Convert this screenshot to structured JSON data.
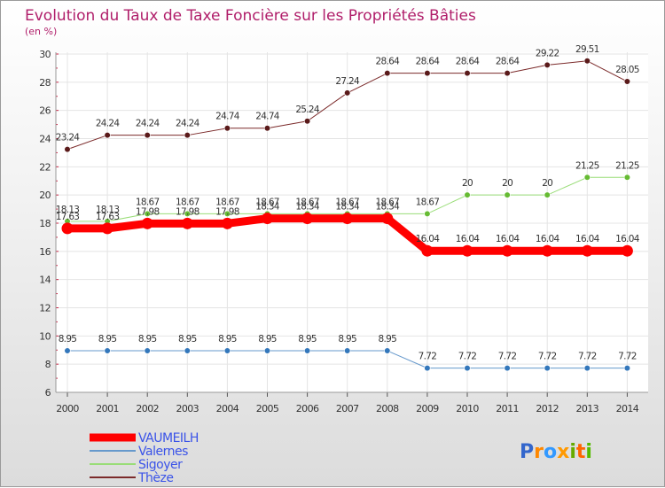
{
  "chart_data": {
    "type": "line",
    "title": "Evolution du Taux de Taxe Foncière sur les Propriétés Bâties",
    "subtitle": "(en %)",
    "x": [
      "2000",
      "2001",
      "2002",
      "2003",
      "2004",
      "2005",
      "2006",
      "2007",
      "2008",
      "2009",
      "2010",
      "2011",
      "2012",
      "2013",
      "2014"
    ],
    "yticks": [
      "6",
      "8",
      "10",
      "12",
      "14",
      "16",
      "18",
      "20",
      "22",
      "24",
      "26",
      "28",
      "30"
    ],
    "ylim": [
      6,
      30
    ],
    "legend_position": "bottom-left",
    "series": [
      {
        "name": "Thèze",
        "color": "#7b2a2a",
        "marker": "#5a1a1a",
        "width": 1,
        "values": [
          23.24,
          24.24,
          24.24,
          24.24,
          24.74,
          24.74,
          25.24,
          27.24,
          28.64,
          28.64,
          28.64,
          28.64,
          29.22,
          29.51,
          28.05
        ],
        "labels": [
          "23.24",
          "24.24",
          "24.24",
          "24.24",
          "24.74",
          "24.74",
          "25.24",
          "27.24",
          "28.64",
          "28.64",
          "28.64",
          "28.64",
          "29.22",
          "29.51",
          "28.05"
        ]
      },
      {
        "name": "Sigoyer",
        "color": "#99dd77",
        "marker": "#66bb33",
        "width": 1,
        "values": [
          18.13,
          18.13,
          18.67,
          18.67,
          18.67,
          18.67,
          18.67,
          18.67,
          18.67,
          18.67,
          20,
          20,
          20,
          21.25,
          21.25
        ],
        "labels": [
          "18.13",
          "18.13",
          "18.67",
          "18.67",
          "18.67",
          "18.67",
          "18.67",
          "18.67",
          "18.67",
          "18.67",
          "20",
          "20",
          "20",
          "21.25",
          "21.25"
        ]
      },
      {
        "name": "VAUMEILH",
        "color": "#ff0000",
        "marker": "#ff0000",
        "width": 9,
        "values": [
          17.63,
          17.63,
          17.98,
          17.98,
          17.98,
          18.34,
          18.34,
          18.34,
          18.34,
          16.04,
          16.04,
          16.04,
          16.04,
          16.04,
          16.04
        ],
        "labels": [
          "17.63",
          "17.63",
          "17.98",
          "17.98",
          "17.98",
          "18.34",
          "18.34",
          "18.34",
          "18.34",
          "16.04",
          "16.04",
          "16.04",
          "16.04",
          "16.04",
          "16.04"
        ]
      },
      {
        "name": "Valernes",
        "color": "#6699cc",
        "marker": "#3377bb",
        "width": 1,
        "values": [
          8.95,
          8.95,
          8.95,
          8.95,
          8.95,
          8.95,
          8.95,
          8.95,
          8.95,
          7.72,
          7.72,
          7.72,
          7.72,
          7.72,
          7.72
        ],
        "labels": [
          "8.95",
          "8.95",
          "8.95",
          "8.95",
          "8.95",
          "8.95",
          "8.95",
          "8.95",
          "8.95",
          "7.72",
          "7.72",
          "7.72",
          "7.72",
          "7.72",
          "7.72"
        ]
      }
    ],
    "legend": [
      "VAUMEILH",
      "Valernes",
      "Sigoyer",
      "Thèze"
    ]
  },
  "logo": {
    "letters": [
      "P",
      "r",
      "o",
      "x",
      "i",
      "t",
      "i"
    ],
    "colors": [
      "#3366cc",
      "#ff8800",
      "#3399ff",
      "#ff9900",
      "#66aa00",
      "#ff6600",
      "#55bb00"
    ]
  },
  "legend_colors": {
    "VAUMEILH": "#ff0000",
    "Valernes": "#6699cc",
    "Sigoyer": "#99dd77",
    "Thèze": "#7b2a2a"
  }
}
